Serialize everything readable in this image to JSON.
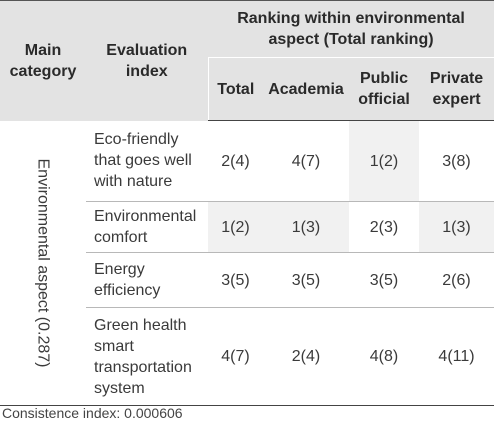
{
  "header": {
    "main_category": "Main category",
    "evaluation_index": "Evaluation index",
    "group": "Ranking within environmental aspect (Total ranking)",
    "columns": [
      "Total",
      "Academia",
      "Public official",
      "Private expert"
    ]
  },
  "category": "Environmental aspect (0.287)",
  "rows": [
    {
      "index": "Eco-friendly that goes well with nature",
      "values": [
        "2(4)",
        "4(7)",
        "1(2)",
        "3(8)"
      ]
    },
    {
      "index": "Environmental comfort",
      "values": [
        "1(2)",
        "1(3)",
        "2(3)",
        "1(3)"
      ]
    },
    {
      "index": "Energy efficiency",
      "values": [
        "3(5)",
        "3(5)",
        "3(5)",
        "2(6)"
      ]
    },
    {
      "index": "Green health smart transportation system",
      "values": [
        "4(7)",
        "2(4)",
        "4(8)",
        "4(11)"
      ]
    }
  ],
  "footer": "Consistence index: 0.000606"
}
